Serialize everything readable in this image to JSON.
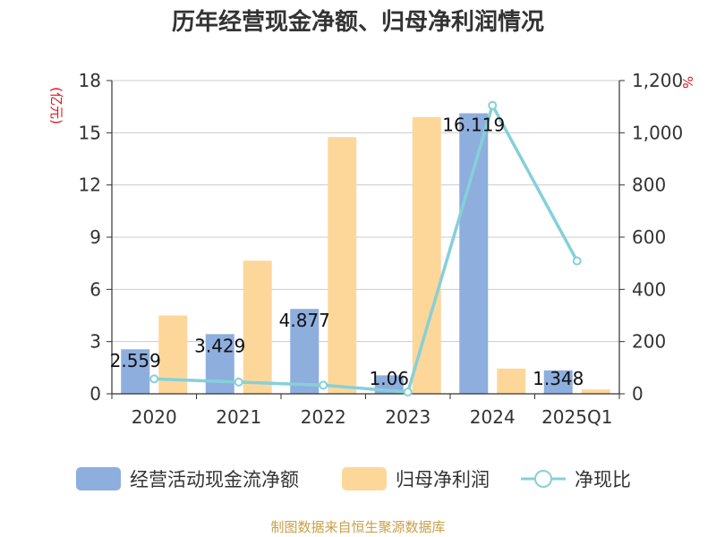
{
  "title": "历年经营现金净额、归母净利润情况",
  "source": "制图数据来自恒生聚源数据库",
  "colors": {
    "op_cash": "#8eaede",
    "net_profit": "#fdd79a",
    "ratio": "#86d0d8",
    "axis": "#333333",
    "grid": "#cccccc",
    "unit": "#e0141e",
    "source": "#c8a04a"
  },
  "chart_data": {
    "type": "bar",
    "categories": [
      "2020",
      "2021",
      "2022",
      "2023",
      "2024",
      "2025Q1"
    ],
    "left_axis": {
      "unit": "(亿元)",
      "ylim": [
        0,
        18
      ],
      "ticks": [
        "0",
        "3",
        "6",
        "9",
        "12",
        "15",
        "18"
      ]
    },
    "right_axis": {
      "unit": "%",
      "ylim": [
        0,
        1200
      ],
      "ticks": [
        "0",
        "200",
        "400",
        "600",
        "800",
        "1,000",
        "1,200"
      ]
    },
    "grid": true,
    "legend_position": "bottom",
    "series": [
      {
        "name": "经营活动现金流净额",
        "type": "bar",
        "axis": "left",
        "values": [
          2.559,
          3.429,
          4.877,
          1.06,
          16.119,
          1.348
        ],
        "labels": [
          "2.559",
          "3.429",
          "4.877",
          "1.06",
          "16.119",
          "1.348"
        ]
      },
      {
        "name": "归母净利润",
        "type": "bar",
        "axis": "left",
        "values": [
          4.5,
          7.65,
          14.75,
          15.9,
          1.45,
          0.25
        ]
      },
      {
        "name": "净现比",
        "type": "line",
        "axis": "right",
        "values": [
          57,
          45,
          33,
          7,
          1105,
          509
        ]
      }
    ]
  }
}
